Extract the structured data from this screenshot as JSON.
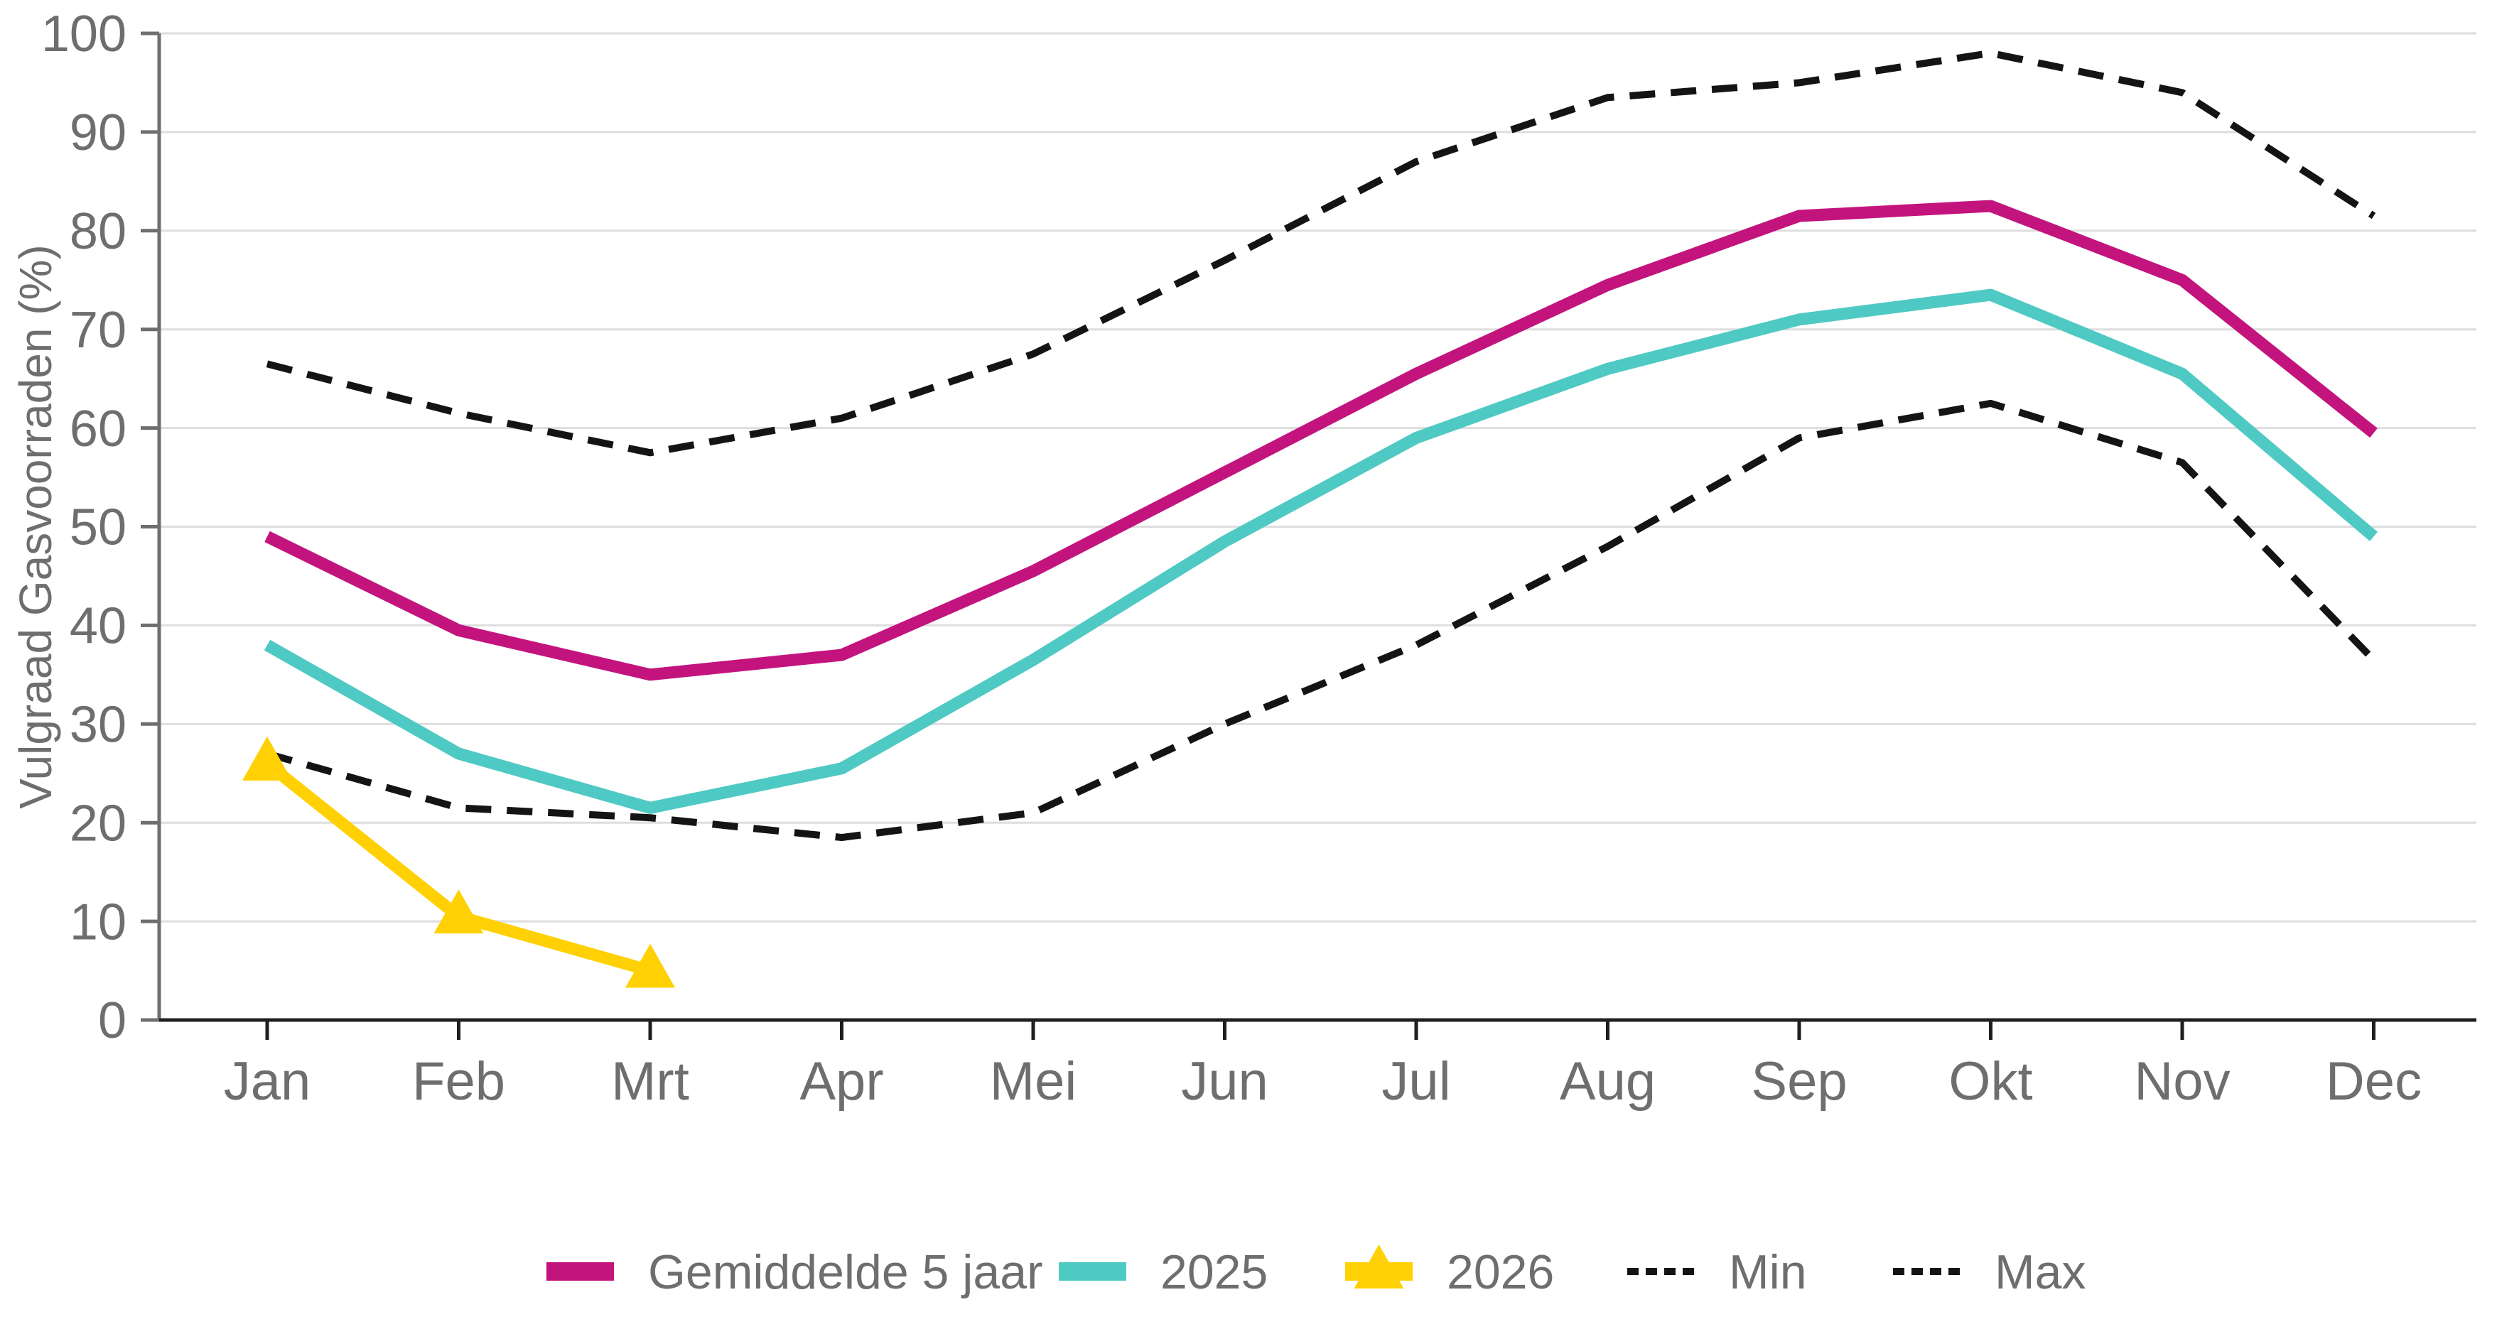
{
  "chart_data": {
    "type": "line",
    "title": "",
    "xlabel": "",
    "ylabel": "Vulgraad Gasvoorraden (%)",
    "categories": [
      "Jan",
      "Feb",
      "Mrt",
      "Apr",
      "Mei",
      "Jun",
      "Jul",
      "Aug",
      "Sep",
      "Okt",
      "Nov",
      "Dec"
    ],
    "ylim": [
      0,
      100
    ],
    "ytick_step": 10,
    "grid": true,
    "legend_position": "bottom",
    "series": [
      {
        "name": "Gemiddelde 5 jaar",
        "line_style": "solid",
        "marker": "none",
        "color": "#C3147E",
        "values": [
          49,
          39.5,
          35,
          37,
          45.5,
          55.5,
          65.5,
          74.5,
          81.5,
          82.5,
          75,
          59.5
        ]
      },
      {
        "name": "2025",
        "line_style": "solid",
        "marker": "none",
        "color": "#4FC9C3",
        "values": [
          38,
          27,
          21.5,
          25.5,
          36.5,
          48.5,
          59,
          66,
          71,
          73.5,
          65.5,
          49
        ]
      },
      {
        "name": "2026",
        "line_style": "solid",
        "marker": "triangle-up",
        "color": "#FFD105",
        "values": [
          26,
          10.5,
          5,
          null,
          null,
          null,
          null,
          null,
          null,
          null,
          null,
          null
        ]
      },
      {
        "name": "Min",
        "line_style": "dashed",
        "marker": "none",
        "color": "#141414",
        "values": [
          27,
          21.5,
          20.5,
          18.5,
          21,
          30,
          38,
          48,
          59,
          62.5,
          56.5,
          36.5
        ]
      },
      {
        "name": "Max",
        "line_style": "dashed",
        "marker": "none",
        "color": "#141414",
        "values": [
          66.5,
          61.5,
          57.5,
          61,
          67.5,
          77,
          87,
          93.5,
          95,
          98,
          94,
          81.5
        ]
      }
    ],
    "style": {
      "background": "#FFFFFF",
      "grid_color": "#DEDEDE",
      "x_axis_color": "#1F1F1F",
      "y_axis_color": "#6E6E6E",
      "text_color": "#6E6E6E"
    }
  }
}
